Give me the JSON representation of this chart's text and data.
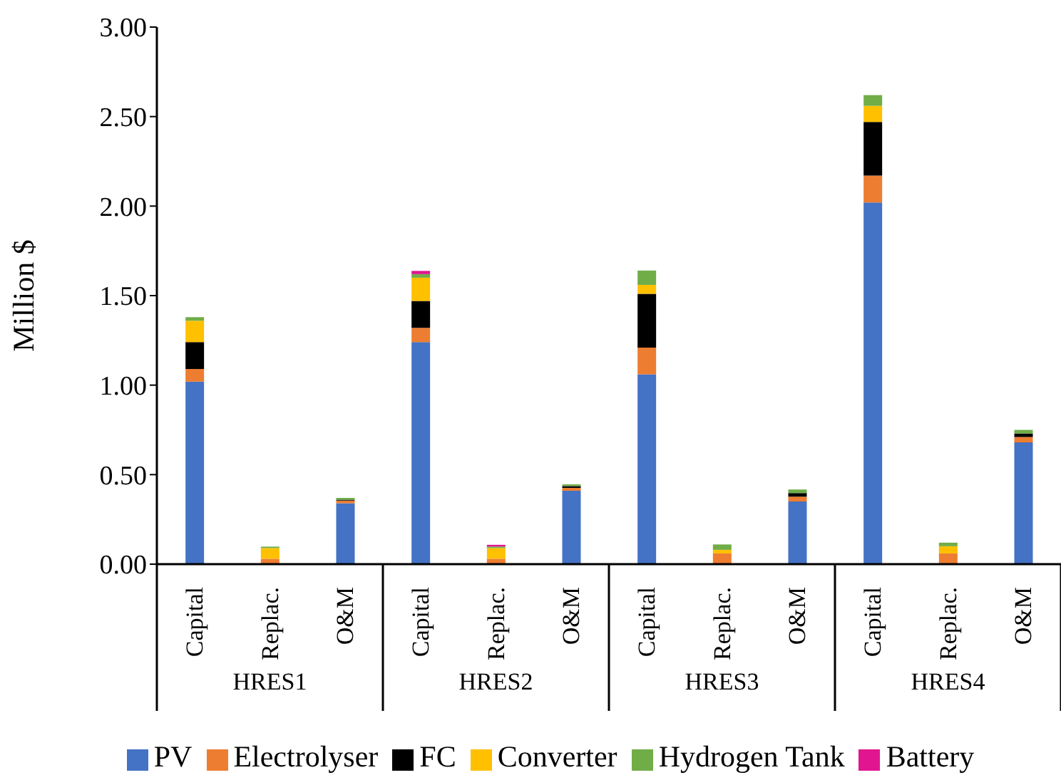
{
  "chart_data": {
    "type": "bar",
    "stacked": true,
    "ylabel": "Million $",
    "categories": [
      "Capital",
      "Replac.",
      "O&M",
      "Capital",
      "Replac.",
      "O&M",
      "Capital",
      "Replac.",
      "O&M",
      "Capital",
      "Replac.",
      "O&M"
    ],
    "annotations": [
      "HRES1",
      "HRES2",
      "HRES3",
      "HRES4"
    ],
    "series": [
      {
        "name": "PV",
        "color": "#4472c4",
        "values": [
          1.02,
          0,
          0.34,
          1.24,
          0,
          0.41,
          1.06,
          0,
          0.35,
          2.02,
          0,
          0.68
        ]
      },
      {
        "name": "Electrolyser",
        "color": "#ed7d31",
        "values": [
          0.07,
          0.03,
          0.015,
          0.08,
          0.03,
          0.016,
          0.15,
          0.06,
          0.027,
          0.15,
          0.06,
          0.03
        ]
      },
      {
        "name": "FC",
        "color": "#000000",
        "values": [
          0.15,
          0,
          0.005,
          0.15,
          0,
          0.01,
          0.3,
          0,
          0.02,
          0.3,
          0,
          0.02
        ]
      },
      {
        "name": "Converter",
        "color": "#ffc000",
        "values": [
          0.12,
          0.06,
          0,
          0.13,
          0.06,
          0,
          0.05,
          0.02,
          0,
          0.09,
          0.04,
          0
        ]
      },
      {
        "name": "Hydrogen Tank",
        "color": "#70ad47",
        "values": [
          0.02,
          0.008,
          0.01,
          0.02,
          0.008,
          0.01,
          0.08,
          0.03,
          0.02,
          0.06,
          0.02,
          0.02
        ]
      },
      {
        "name": "Battery",
        "color": "#e0158f",
        "values": [
          0,
          0,
          0,
          0.018,
          0.01,
          0,
          0,
          0,
          0,
          0,
          0,
          0
        ]
      }
    ],
    "ylim": [
      0,
      3
    ],
    "yticks": [
      {
        "value": 0,
        "label": "0.00"
      },
      {
        "value": 0.5,
        "label": "0.50"
      },
      {
        "value": 1,
        "label": "1.00"
      },
      {
        "value": 1.5,
        "label": "1.50"
      },
      {
        "value": 2,
        "label": "2.00"
      },
      {
        "value": 2.5,
        "label": "2.50"
      },
      {
        "value": 3,
        "label": "3.00"
      }
    ],
    "grid": false,
    "legend": "bottom"
  }
}
